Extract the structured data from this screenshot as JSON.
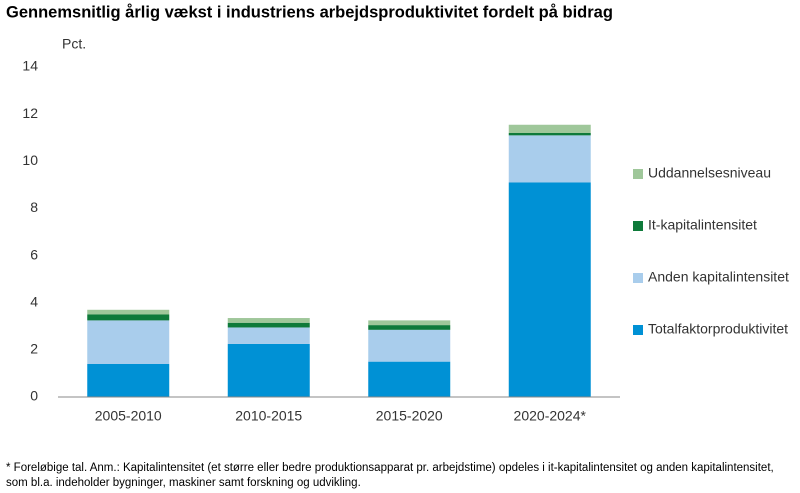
{
  "chart_data": {
    "type": "stacked_bar",
    "title": "Gennemsnitlig årlig vækst i industriens arbejdsproduktivitet fordelt på bidrag",
    "y_label": "Pct.",
    "categories": [
      "2005-2010",
      "2010-2015",
      "2015-2020",
      "2020-2024*"
    ],
    "series": [
      {
        "name": "Totalfaktorproduktivitet",
        "color": "#0091d5",
        "values": [
          1.4,
          2.25,
          1.5,
          9.1
        ]
      },
      {
        "name": "Anden kapitalintensitet",
        "color": "#a9cdec",
        "values": [
          1.85,
          0.7,
          1.35,
          2.0
        ]
      },
      {
        "name": "It-kapitalintensitet",
        "color": "#0e7a3a",
        "values": [
          0.25,
          0.2,
          0.2,
          0.1
        ]
      },
      {
        "name": "Uddannelsesniveau",
        "color": "#9fc79a",
        "values": [
          0.2,
          0.2,
          0.2,
          0.35
        ]
      }
    ],
    "ylim": [
      0,
      14
    ],
    "yticks": [
      0,
      2,
      4,
      6,
      8,
      10,
      12,
      14
    ],
    "footnote": "* Foreløbige tal. Anm.: Kapitalintensitet (et større eller bedre produktionsapparat pr. arbejdstime) opdeles i it-kapitalintensitet og anden kapitalintensitet, som bl.a. indeholder bygninger, maskiner samt forskning og udvikling."
  }
}
